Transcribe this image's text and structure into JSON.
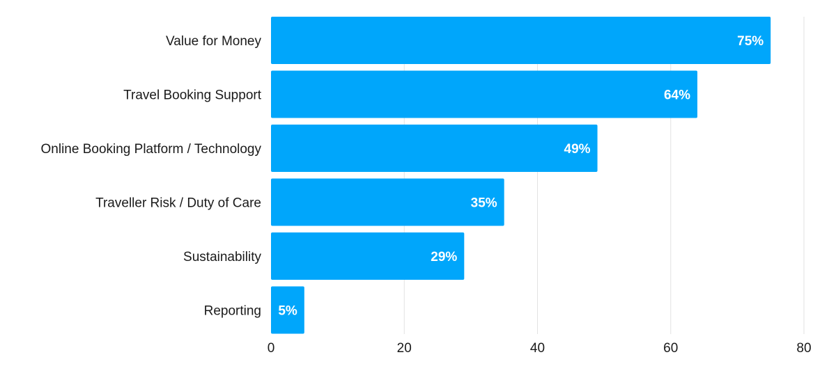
{
  "chart_data": {
    "type": "bar",
    "orientation": "horizontal",
    "title": "",
    "xlabel": "",
    "ylabel": "",
    "categories": [
      "Value for Money",
      "Travel Booking Support",
      "Online Booking Platform / Technology",
      "Traveller Risk / Duty of Care",
      "Sustainability",
      "Reporting"
    ],
    "values": [
      75,
      64,
      49,
      35,
      29,
      5
    ],
    "data_labels": [
      "75%",
      "64%",
      "49%",
      "35%",
      "29%",
      "5%"
    ],
    "xlim": [
      0,
      80
    ],
    "x_ticks": [
      0,
      20,
      40,
      60,
      80
    ],
    "x_tick_labels": [
      "0",
      "20",
      "40",
      "60",
      "80"
    ],
    "grid": "vertical",
    "legend": "none",
    "bar_color": "#00a6fb",
    "label_color": "#ffffff",
    "grid_color": "#e2e2e2",
    "text_color": "#1a1a1a"
  }
}
